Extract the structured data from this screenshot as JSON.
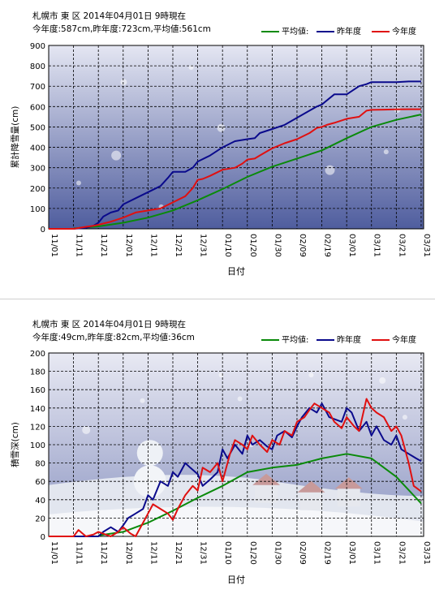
{
  "colors": {
    "avg": "#0a8a0a",
    "last_year": "#0a0a8c",
    "this_year": "#e01010"
  },
  "legend": {
    "avg": "平均値",
    "last_year": "昨年度",
    "this_year": "今年度"
  },
  "charts": [
    {
      "header": "札幌市 東 区 2014年04月01日 9時現在",
      "summary": "今年度:587cm,昨年度:723cm,平均値:561cm",
      "xlabel": "日付",
      "ylabel": "累計降雪量(cm)",
      "x_ticks": [
        "11/01",
        "11/11",
        "11/21",
        "12/01",
        "12/11",
        "12/21",
        "12/31",
        "01/10",
        "01/20",
        "01/30",
        "02/09",
        "02/19",
        "03/01",
        "03/11",
        "03/21",
        "03/31"
      ],
      "y_ticks": [
        "0",
        "100",
        "200",
        "300",
        "400",
        "500",
        "600",
        "700",
        "800",
        "900"
      ]
    },
    {
      "header": "札幌市 東 区 2014年04月01日 9時現在",
      "summary": "今年度:49cm,昨年度:82cm,平均値:36cm",
      "xlabel": "日付",
      "ylabel": "積雪深(cm)",
      "x_ticks": [
        "11/01",
        "11/11",
        "11/21",
        "12/01",
        "12/11",
        "12/21",
        "12/31",
        "01/10",
        "01/20",
        "01/30",
        "02/09",
        "02/19",
        "03/01",
        "03/11",
        "03/21",
        "03/31"
      ],
      "y_ticks": [
        "0",
        "20",
        "40",
        "60",
        "80",
        "100",
        "120",
        "140",
        "160",
        "180",
        "200"
      ]
    }
  ],
  "chart_data": [
    {
      "type": "line",
      "title": "札幌市 東 区 2014年04月01日 9時現在",
      "xlabel": "日付",
      "ylabel": "累計降雪量(cm)",
      "ylim": [
        0,
        900
      ],
      "x_range_days": [
        0,
        151
      ],
      "grid": true,
      "legend_position": "top-right",
      "series": [
        {
          "name": "平均値",
          "color": "#0a8a0a",
          "x": [
            10,
            20,
            30,
            40,
            50,
            60,
            70,
            80,
            90,
            100,
            110,
            120,
            130,
            140,
            150
          ],
          "y": [
            2,
            12,
            30,
            55,
            90,
            140,
            195,
            255,
            305,
            345,
            385,
            445,
            500,
            535,
            561
          ]
        },
        {
          "name": "昨年度",
          "color": "#0a0a8c",
          "x": [
            0,
            10,
            15,
            18,
            20,
            22,
            25,
            28,
            30,
            35,
            40,
            45,
            48,
            50,
            55,
            58,
            60,
            65,
            70,
            75,
            80,
            83,
            85,
            90,
            95,
            100,
            105,
            108,
            110,
            113,
            115,
            120,
            125,
            128,
            130,
            135,
            140,
            145,
            147,
            150
          ],
          "y": [
            0,
            0,
            5,
            15,
            30,
            60,
            80,
            90,
            120,
            150,
            180,
            210,
            250,
            280,
            280,
            300,
            330,
            360,
            400,
            430,
            440,
            445,
            470,
            490,
            510,
            545,
            580,
            600,
            610,
            640,
            660,
            660,
            700,
            710,
            720,
            720,
            720,
            723,
            723,
            723
          ]
        },
        {
          "name": "今年度",
          "color": "#e01010",
          "x": [
            0,
            10,
            15,
            18,
            20,
            25,
            30,
            35,
            40,
            45,
            50,
            55,
            58,
            60,
            62,
            65,
            70,
            75,
            78,
            80,
            83,
            85,
            90,
            95,
            100,
            105,
            108,
            110,
            112,
            115,
            120,
            125,
            128,
            130,
            135,
            140,
            145,
            150
          ],
          "y": [
            0,
            0,
            10,
            15,
            20,
            35,
            55,
            80,
            90,
            100,
            130,
            160,
            200,
            240,
            245,
            260,
            290,
            300,
            320,
            340,
            345,
            360,
            395,
            420,
            440,
            470,
            495,
            500,
            510,
            520,
            540,
            550,
            580,
            584,
            585,
            586,
            587,
            587
          ]
        }
      ]
    },
    {
      "type": "line",
      "title": "札幌市 東 区 2014年04月01日 9時現在",
      "xlabel": "日付",
      "ylabel": "積雪深(cm)",
      "ylim": [
        0,
        200
      ],
      "x_range_days": [
        0,
        151
      ],
      "grid": true,
      "legend_position": "top-right",
      "series": [
        {
          "name": "平均値",
          "color": "#0a8a0a",
          "x": [
            20,
            30,
            40,
            50,
            60,
            70,
            80,
            90,
            100,
            110,
            120,
            130,
            140,
            150
          ],
          "y": [
            1,
            5,
            15,
            28,
            42,
            55,
            70,
            75,
            78,
            85,
            90,
            85,
            65,
            36
          ]
        },
        {
          "name": "昨年度",
          "color": "#0a0a8c",
          "x": [
            0,
            20,
            22,
            25,
            28,
            30,
            32,
            35,
            38,
            40,
            42,
            45,
            48,
            50,
            52,
            55,
            57,
            60,
            62,
            65,
            68,
            70,
            72,
            75,
            78,
            80,
            82,
            85,
            88,
            90,
            92,
            95,
            98,
            100,
            102,
            105,
            108,
            110,
            113,
            115,
            118,
            120,
            122,
            125,
            128,
            130,
            132,
            135,
            138,
            140,
            142,
            145,
            148,
            150
          ],
          "y": [
            0,
            0,
            5,
            10,
            5,
            12,
            20,
            25,
            30,
            45,
            40,
            60,
            55,
            70,
            65,
            80,
            75,
            68,
            55,
            62,
            70,
            95,
            85,
            100,
            90,
            110,
            100,
            105,
            98,
            95,
            110,
            115,
            108,
            120,
            130,
            140,
            135,
            145,
            130,
            128,
            125,
            140,
            135,
            115,
            125,
            110,
            120,
            105,
            100,
            110,
            95,
            90,
            85,
            82
          ]
        },
        {
          "name": "今年度",
          "color": "#e01010",
          "x": [
            0,
            10,
            12,
            15,
            18,
            20,
            25,
            28,
            30,
            33,
            35,
            38,
            40,
            42,
            45,
            48,
            50,
            52,
            55,
            58,
            60,
            62,
            65,
            68,
            70,
            73,
            75,
            78,
            80,
            82,
            85,
            88,
            90,
            93,
            95,
            98,
            100,
            103,
            105,
            107,
            110,
            113,
            115,
            118,
            120,
            123,
            125,
            128,
            130,
            132,
            135,
            138,
            140,
            142,
            145,
            147,
            150
          ],
          "y": [
            0,
            0,
            7,
            0,
            2,
            5,
            0,
            5,
            10,
            3,
            0,
            15,
            25,
            35,
            30,
            25,
            18,
            30,
            45,
            55,
            50,
            75,
            70,
            80,
            60,
            90,
            105,
            100,
            95,
            110,
            100,
            92,
            105,
            100,
            115,
            110,
            125,
            130,
            138,
            145,
            140,
            135,
            125,
            118,
            130,
            120,
            115,
            150,
            140,
            135,
            130,
            115,
            120,
            110,
            80,
            55,
            49
          ]
        }
      ]
    }
  ]
}
